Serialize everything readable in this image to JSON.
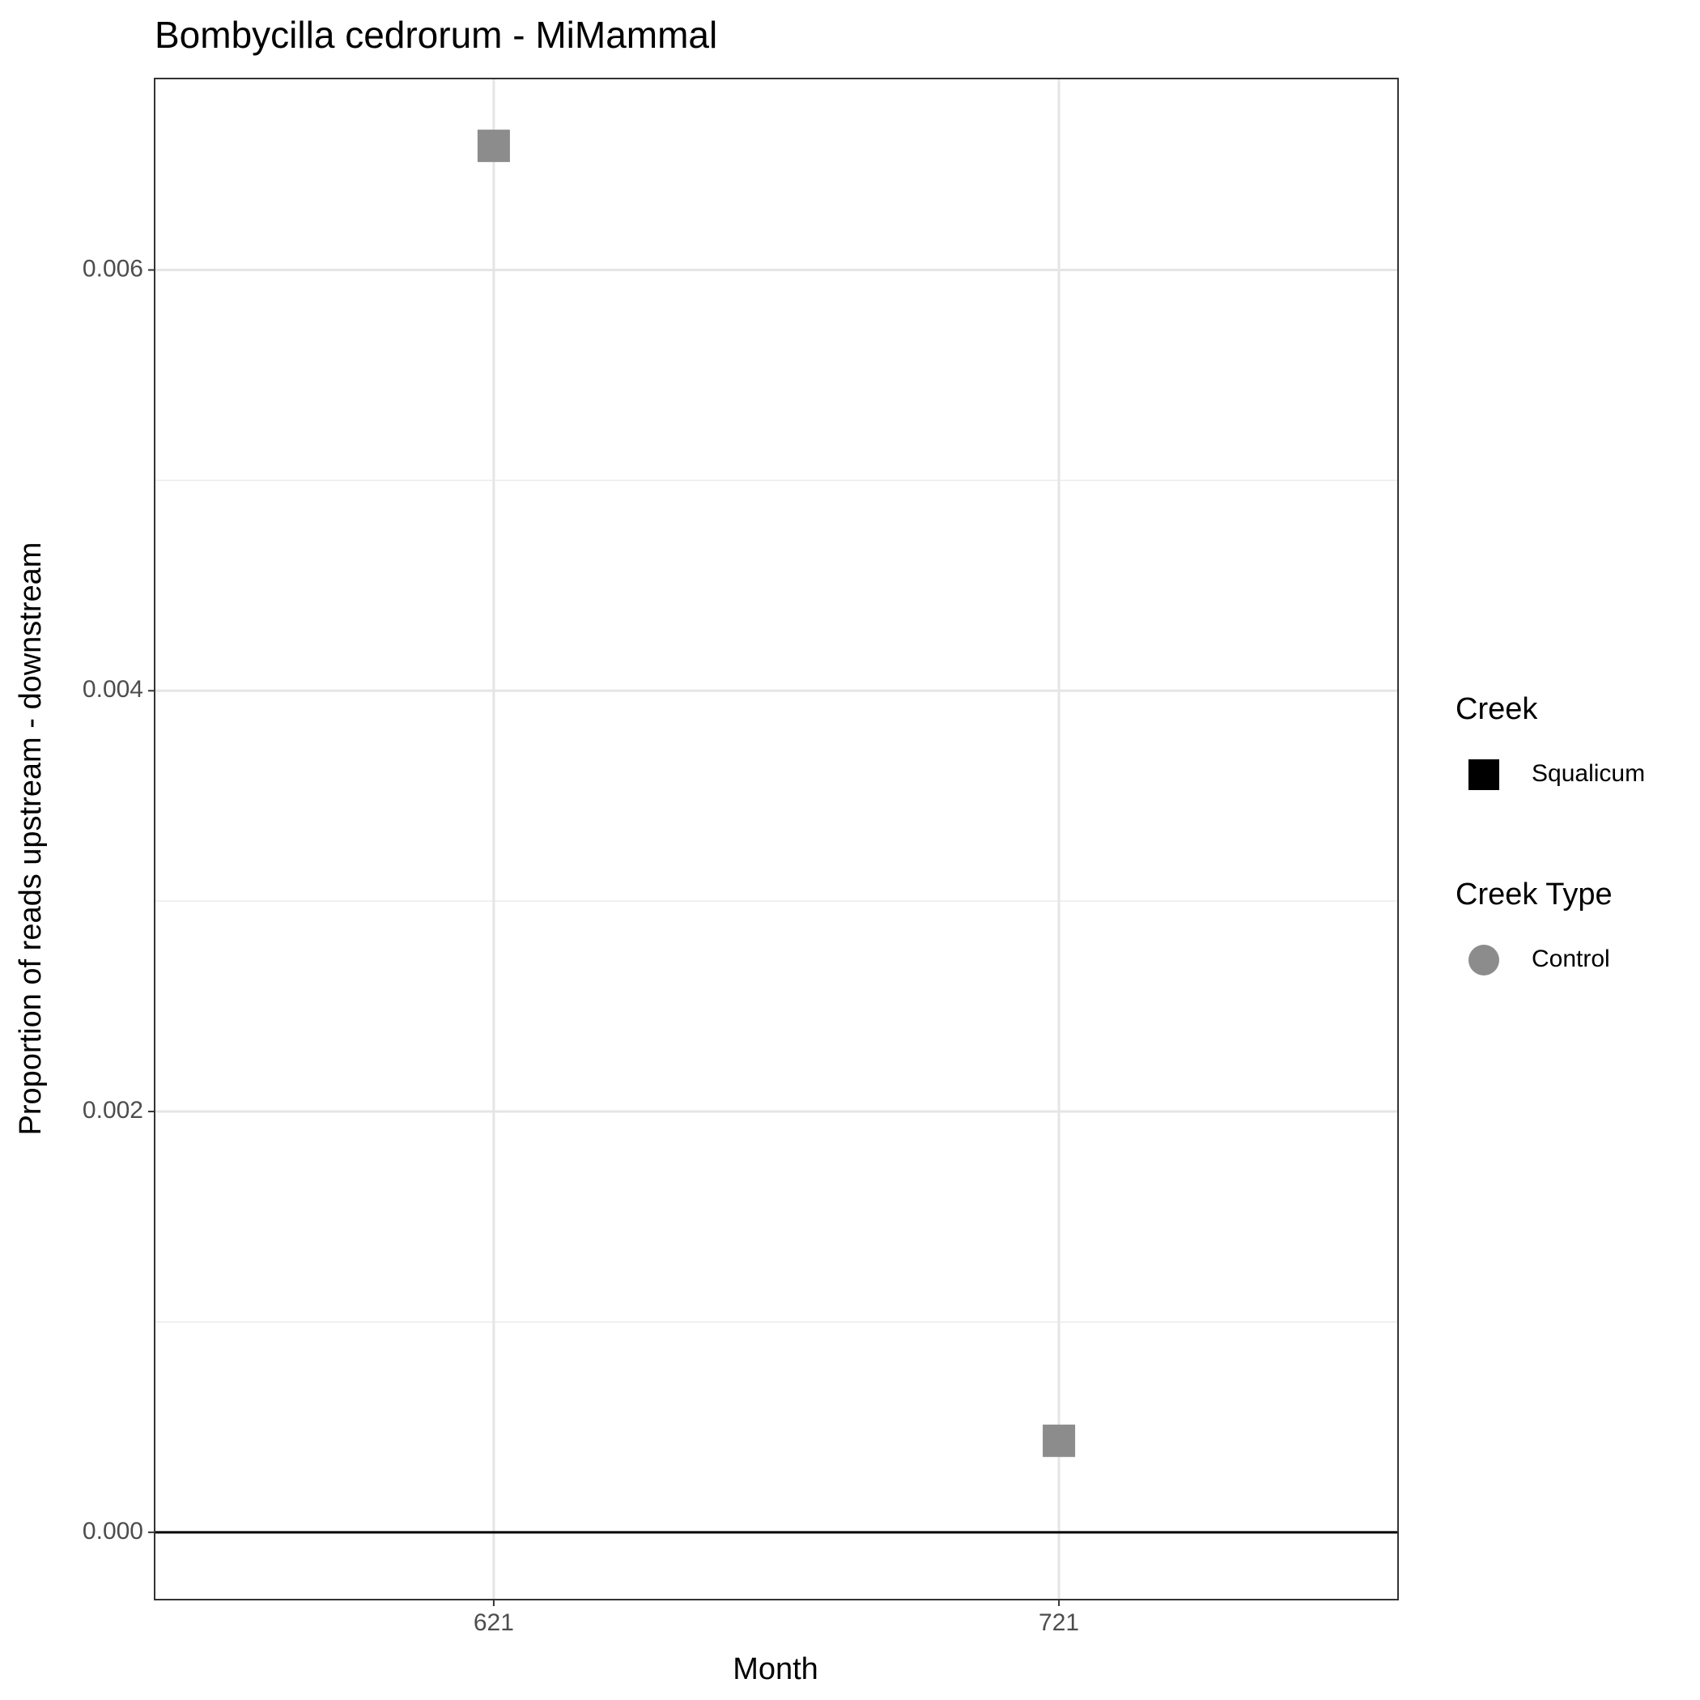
{
  "chart_data": {
    "type": "scatter",
    "title": "Bombycilla cedrorum - MiMammal",
    "x_label": "Month",
    "y_label": "Proportion of reads upstream - downstream",
    "categories": [
      "621",
      "721"
    ],
    "series": [
      {
        "color": "#8c8c8c",
        "shape": "square",
        "values": [
          0.00659,
          0.000435
        ]
      }
    ],
    "ylim": [
      -0.00032,
      0.00691
    ],
    "yticks": [
      {
        "value": 0,
        "label": "0.000"
      },
      {
        "value": 0.002,
        "label": "0.002"
      },
      {
        "value": 0.004,
        "label": "0.004"
      },
      {
        "value": 0.006,
        "label": "0.006"
      }
    ],
    "grid": true,
    "minor_grid": true,
    "hline": 0,
    "legends": [
      {
        "title": "Creek",
        "items": [
          {
            "label": "Squalicum",
            "shape": "square",
            "color": "#000000"
          }
        ]
      },
      {
        "title": "Creek Type",
        "items": [
          {
            "label": "Control",
            "shape": "circle",
            "color": "#8c8c8c"
          }
        ]
      }
    ]
  }
}
